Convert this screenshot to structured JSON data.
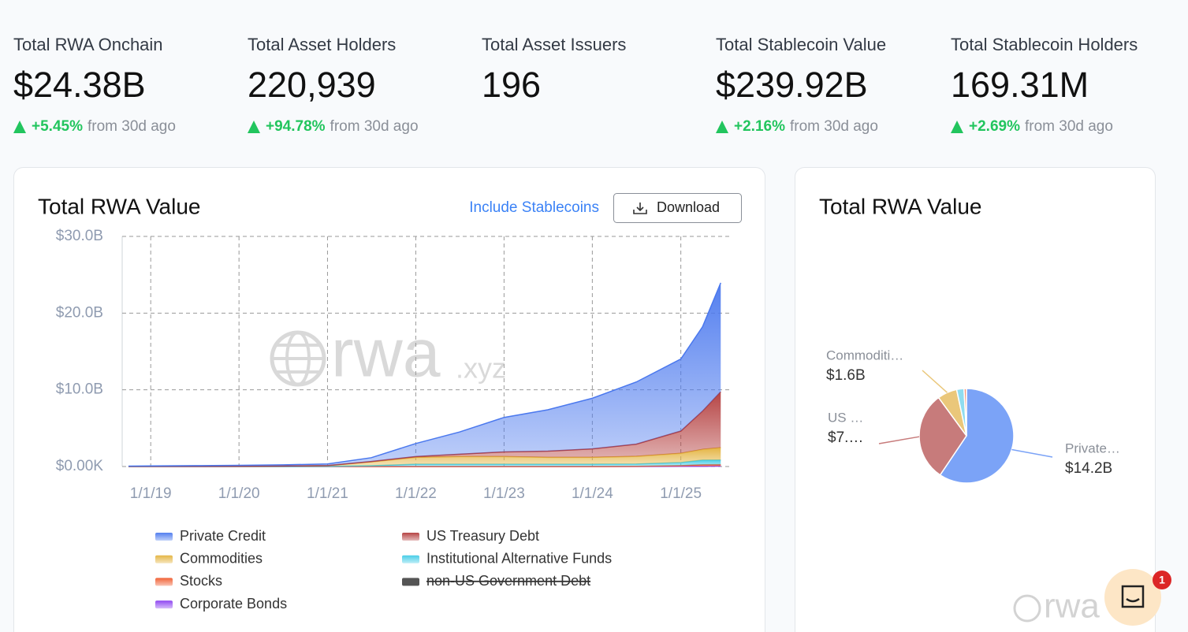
{
  "stats": [
    {
      "label": "Total RWA Onchain",
      "value": "$24.38B",
      "change": "+5.45%",
      "suffix": "from 30d ago"
    },
    {
      "label": "Total Asset Holders",
      "value": "220,939",
      "change": "+94.78%",
      "suffix": "from 30d ago"
    },
    {
      "label": "Total Asset Issuers",
      "value": "196"
    },
    {
      "label": "Total Stablecoin Value",
      "value": "$239.92B",
      "change": "+2.16%",
      "suffix": "from 30d ago"
    },
    {
      "label": "Total Stablecoin Holders",
      "value": "169.31M",
      "change": "+2.69%",
      "suffix": "from 30d ago"
    }
  ],
  "controls": {
    "toggle": "Include Stablecoins",
    "download": "Download"
  },
  "watermark": {
    "main": "rwa",
    "suffix": ".xyz"
  },
  "chat": {
    "badge": "1"
  },
  "chart_data": [
    {
      "type": "area",
      "stacked": true,
      "title": "Total RWA Value",
      "x": [
        "10/1/18",
        "1/1/19",
        "7/1/19",
        "1/1/20",
        "7/1/20",
        "1/1/21",
        "7/1/21",
        "1/1/22",
        "7/1/22",
        "1/1/23",
        "7/1/23",
        "1/1/24",
        "7/1/24",
        "1/1/25",
        "4/1/25",
        "6/15/25"
      ],
      "xlim": [
        "9/5/18",
        "7/20/25"
      ],
      "xticks": [
        "1/1/19",
        "1/1/20",
        "1/1/21",
        "1/1/22",
        "1/1/23",
        "1/1/24",
        "1/1/25"
      ],
      "ylim": [
        0,
        30
      ],
      "yticks": [
        {
          "value": 0,
          "label": "$0.00K"
        },
        {
          "value": 10,
          "label": "$10.0B"
        },
        {
          "value": 20,
          "label": "$20.0B"
        },
        {
          "value": 30,
          "label": "$30.0B"
        }
      ],
      "grid": true,
      "legend": "bottom",
      "series": [
        {
          "name": "Private Credit",
          "color": "#4a78ee",
          "values": [
            0.04,
            0.06,
            0.08,
            0.12,
            0.16,
            0.2,
            0.5,
            1.7,
            2.9,
            4.5,
            5.4,
            6.6,
            8.1,
            9.4,
            11.0,
            14.2
          ]
        },
        {
          "name": "US Treasury Debt",
          "color": "#b23b3b",
          "values": [
            0,
            0,
            0,
            0,
            0,
            0.01,
            0.05,
            0.1,
            0.3,
            0.6,
            0.8,
            1.1,
            1.6,
            2.9,
            5.0,
            7.3
          ]
        },
        {
          "name": "Commodities",
          "color": "#e3b23c",
          "values": [
            0.01,
            0.02,
            0.03,
            0.04,
            0.06,
            0.1,
            0.5,
            0.9,
            1.0,
            1.0,
            0.9,
            0.9,
            1.0,
            1.2,
            1.4,
            1.6
          ]
        },
        {
          "name": "Institutional Alternative Funds",
          "color": "#3fcbe6",
          "values": [
            0,
            0,
            0,
            0,
            0,
            0.02,
            0.1,
            0.3,
            0.3,
            0.3,
            0.3,
            0.3,
            0.3,
            0.4,
            0.6,
            0.6
          ]
        },
        {
          "name": "Stocks",
          "color": "#f05a2c",
          "values": [
            0,
            0,
            0,
            0,
            0,
            0,
            0,
            0,
            0,
            0,
            0,
            0,
            0.02,
            0.1,
            0.2,
            0.2
          ]
        },
        {
          "name": "non-US Government Debt",
          "color": "#555555",
          "hidden": true
        },
        {
          "name": "Corporate Bonds",
          "color": "#8b3ff0",
          "values": [
            0,
            0,
            0,
            0,
            0,
            0,
            0,
            0,
            0,
            0,
            0,
            0,
            0,
            0.02,
            0.03,
            0.05
          ]
        }
      ]
    },
    {
      "type": "pie",
      "title": "Total RWA Value",
      "labels": [
        "Private…",
        "US …",
        "Commoditi…",
        null,
        null
      ],
      "values": [
        14.2,
        7.3,
        1.6,
        0.6,
        0.2
      ],
      "value_labels": [
        "$14.2B",
        "$7.…",
        "$1.6B",
        null,
        null
      ],
      "colors": [
        "#7ba3f7",
        "#c77b7b",
        "#eac77a",
        "#8fdcef",
        "#f29a82"
      ]
    }
  ]
}
